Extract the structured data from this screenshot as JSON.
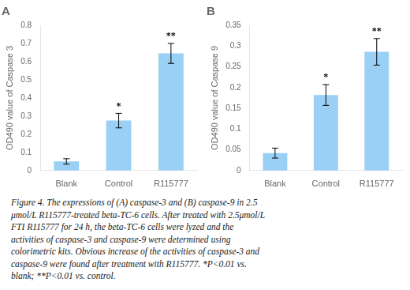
{
  "chart_data": [
    {
      "type": "bar",
      "title": "A",
      "categories": [
        "Blank",
        "Control",
        "R115777"
      ],
      "values": [
        0.05,
        0.275,
        0.645
      ],
      "errors": [
        0.015,
        0.04,
        0.055
      ],
      "ylabel": "OD490 value of Caspase 3",
      "ylim": [
        0,
        0.8
      ],
      "yticks": [
        0,
        0.1,
        0.2,
        0.3,
        0.4,
        0.5,
        0.6,
        0.7,
        0.8
      ],
      "annotations": [
        {
          "x": "Control",
          "text": "*"
        },
        {
          "x": "R115777",
          "text": "**"
        }
      ],
      "grid": false
    },
    {
      "type": "bar",
      "title": "B",
      "categories": [
        "Blank",
        "Control",
        "R115777"
      ],
      "values": [
        0.042,
        0.182,
        0.286
      ],
      "errors": [
        0.012,
        0.025,
        0.032
      ],
      "ylabel": "OD490 value of Caspase 9",
      "ylim": [
        0,
        0.35
      ],
      "yticks": [
        0,
        0.05,
        0.1,
        0.15,
        0.2,
        0.25,
        0.3,
        0.35
      ],
      "annotations": [
        {
          "x": "Control",
          "text": "*"
        },
        {
          "x": "R115777",
          "text": "**"
        }
      ],
      "grid": false
    }
  ],
  "caption": [
    "Figure 4. The expressions of (A) caspase-3 and (B) caspase-9 in 2.5",
    "μmol/L R115777-treated beta-TC-6 cells. After treated with 2.5μmol/L",
    "FTI R115777 for 24 h, the beta-TC-6 cells were lyzed and the",
    "activities of caspase-3 and caspase-9 were determined using",
    "colorimetric kits. Obvious increase of the activities of caspase-3 and",
    "caspase-9 were found after treatment with R115777. *P<0.01 vs.",
    "blank; **P<0.01 vs. control."
  ]
}
